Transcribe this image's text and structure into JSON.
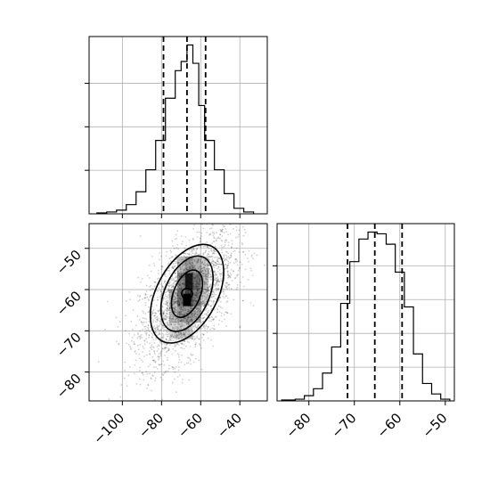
{
  "chart_data": {
    "type": "corner",
    "title": "",
    "panels": [
      {
        "type": "histogram",
        "position": "top-left",
        "xlim": [
          -117,
          -26
        ],
        "xticks": [
          -100,
          -80,
          -60,
          -40
        ],
        "y_scale": "normalized counts (no tick labels)",
        "bin_edges": [
          -113,
          -108,
          -103,
          -98,
          -93,
          -88,
          -83,
          -78,
          -73,
          -70,
          -67,
          -64,
          -61,
          -58,
          -53,
          -48,
          -43,
          -38,
          -33
        ],
        "counts": [
          0.005,
          0.01,
          0.02,
          0.05,
          0.12,
          0.24,
          0.4,
          0.63,
          0.78,
          0.83,
          0.92,
          0.82,
          0.59,
          0.4,
          0.24,
          0.11,
          0.03,
          0.01
        ],
        "quantiles": [
          -79,
          -67,
          -57.5
        ],
        "grid": true
      },
      {
        "type": "2d-density",
        "position": "bottom-left",
        "xlim": [
          -117,
          -26
        ],
        "ylim": [
          -87,
          -44
        ],
        "xticks": [
          -100,
          -80,
          -60,
          -40
        ],
        "yticks": [
          -50,
          -60,
          -70,
          -80
        ],
        "tick_labels_x": [
          "−100",
          "−80",
          "−60",
          "−40"
        ],
        "tick_labels_y": [
          "−50",
          "−60",
          "−70",
          "−80"
        ],
        "density_peak": [
          -67,
          -62
        ],
        "contour_levels": 4,
        "grid": true
      },
      {
        "type": "histogram",
        "position": "bottom-right",
        "xlim": [
          -87,
          -48
        ],
        "xticks": [
          -80,
          -70,
          -60,
          -50
        ],
        "tick_labels_x": [
          "−80",
          "−70",
          "−60",
          "−50"
        ],
        "bin_edges": [
          -86,
          -83,
          -81,
          -79,
          -77,
          -75,
          -73,
          -71,
          -69,
          -67,
          -65,
          -63,
          -61,
          -59,
          -57,
          -55,
          -53,
          -51,
          -49
        ],
        "counts": [
          0.005,
          0.01,
          0.03,
          0.07,
          0.16,
          0.31,
          0.56,
          0.8,
          0.93,
          0.97,
          0.96,
          0.9,
          0.74,
          0.54,
          0.27,
          0.1,
          0.04,
          0.01
        ],
        "quantiles": [
          -71.5,
          -65.5,
          -59.5
        ],
        "grid": true
      }
    ]
  }
}
